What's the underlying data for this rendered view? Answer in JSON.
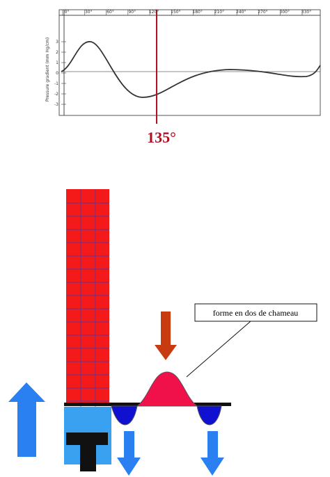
{
  "graph": {
    "x_labels": [
      "0°",
      "30°",
      "60°",
      "90°",
      "120°",
      "150°",
      "180°",
      "210°",
      "240°",
      "270°",
      "300°",
      "330°"
    ],
    "y_labels": [
      "3",
      "2",
      "1",
      "0",
      "-1",
      "-2",
      "-3"
    ],
    "y_axis_label": "Pressure gradient (mm Hg/cm)",
    "marker": "135°"
  },
  "callout": "forme en dos de chameau"
}
